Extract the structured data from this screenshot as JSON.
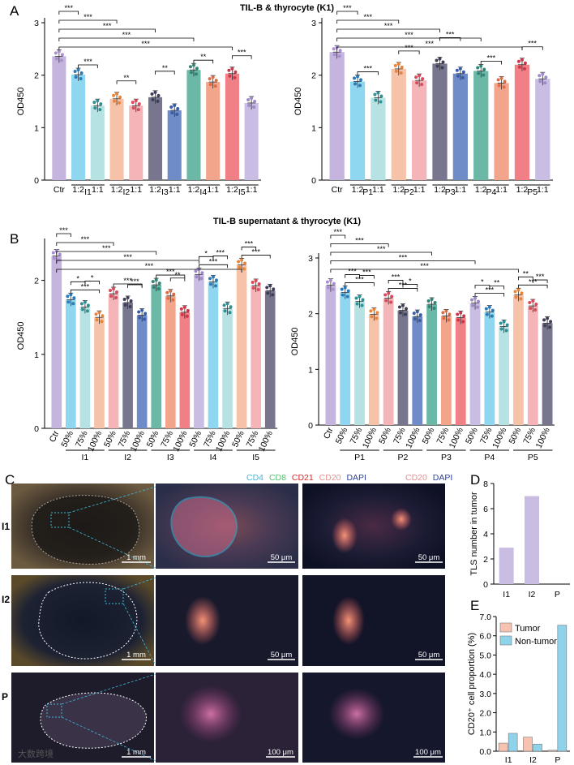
{
  "panel_labels": {
    "A": "A",
    "B": "B",
    "C": "C",
    "D": "D",
    "E": "E"
  },
  "title_A": "TIL-B & thyrocyte (K1)",
  "title_B": "TIL-B supernatant & thyrocyte (K1)",
  "ylabel_od": "OD450",
  "channels_left": [
    {
      "text": "CD4",
      "color": "#3fb8d8"
    },
    {
      "text": "CD8",
      "color": "#4dc26a"
    },
    {
      "text": "CD21",
      "color": "#d9252a"
    },
    {
      "text": "CD20",
      "color": "#e38f8f"
    },
    {
      "text": "DAPI",
      "color": "#2a3fa0"
    }
  ],
  "channels_right": [
    {
      "text": "CD20",
      "color": "#e38f8f"
    },
    {
      "text": "DAPI",
      "color": "#2a3fa0"
    }
  ],
  "micro_rows": [
    {
      "label": "I1",
      "scales": [
        "1 mm",
        "50 μm",
        "50 μm"
      ]
    },
    {
      "label": "I2",
      "scales": [
        "1 mm",
        "50 μm",
        "50 μm"
      ]
    },
    {
      "label": "P",
      "scales": [
        "1 mm",
        "100 μm",
        "100 μm"
      ]
    }
  ],
  "watermark": "大数跨境",
  "chart_data": [
    {
      "id": "A1",
      "type": "bar",
      "title": "TIL-B & thyrocyte (K1)",
      "ylabel": "OD450",
      "ylim": [
        0,
        3
      ],
      "yticks": [
        0,
        1,
        2,
        3
      ],
      "tick_labels": [
        "Ctr",
        "1:2",
        "1:1",
        "1:2",
        "1:1",
        "1:2",
        "1:1",
        "1:2",
        "1:1",
        "1:2",
        "1:1"
      ],
      "groups": [
        "I1",
        "I2",
        "I3",
        "I4",
        "I5"
      ],
      "values": [
        2.36,
        2.01,
        1.42,
        1.55,
        1.42,
        1.58,
        1.33,
        2.1,
        1.87,
        2.03,
        1.47
      ],
      "colors": [
        "#c4b4de",
        "#8fd6f0",
        "#b6e2e4",
        "#f7c3a8",
        "#f5b5b8",
        "#77768e",
        "#6f8cc9",
        "#6bb8a6",
        "#f3a58c",
        "#f07f86",
        "#c9bde3"
      ],
      "dots": [
        "#a98fd0",
        "#2c7ab8",
        "#2e8f94",
        "#e9853b",
        "#d84a5c",
        "#3f3e57",
        "#3a5ba7",
        "#2f8576",
        "#e06c42",
        "#d0354a",
        "#9d89c8"
      ],
      "sig": [
        {
          "from": 0,
          "to": 1,
          "label": "***",
          "level": 0
        },
        {
          "from": 1,
          "to": 2,
          "label": "***",
          "level": -1
        },
        {
          "from": 0,
          "to": 3,
          "label": "***",
          "level": 1
        },
        {
          "from": 3,
          "to": 4,
          "label": "**",
          "level": -2
        },
        {
          "from": 0,
          "to": 5,
          "label": "***",
          "level": 2
        },
        {
          "from": 5,
          "to": 6,
          "label": "**",
          "level": -3
        },
        {
          "from": 0,
          "to": 7,
          "label": "***",
          "level": 3
        },
        {
          "from": 7,
          "to": 8,
          "label": "**",
          "level": -4
        },
        {
          "from": 0,
          "to": 9,
          "label": "***",
          "level": 4
        },
        {
          "from": 9,
          "to": 10,
          "label": "***",
          "level": -5
        }
      ]
    },
    {
      "id": "A2",
      "type": "bar",
      "title": "",
      "ylabel": "OD450",
      "ylim": [
        0,
        3
      ],
      "yticks": [
        0,
        1,
        2,
        3
      ],
      "tick_labels": [
        "Ctr",
        "1:2",
        "1:1",
        "1:2",
        "1:1",
        "1:2",
        "1:1",
        "1:2",
        "1:1",
        "1:2",
        "1:1"
      ],
      "groups": [
        "P1",
        "P2",
        "P3",
        "P4",
        "P5"
      ],
      "values": [
        2.44,
        1.88,
        1.57,
        2.12,
        1.9,
        2.22,
        2.03,
        2.08,
        1.85,
        2.2,
        1.93
      ],
      "colors": [
        "#c4b4de",
        "#8fd6f0",
        "#b6e2e4",
        "#f7c3a8",
        "#f5b5b8",
        "#77768e",
        "#6f8cc9",
        "#6bb8a6",
        "#f3a58c",
        "#f07f86",
        "#c9bde3"
      ],
      "dots": [
        "#a98fd0",
        "#2c7ab8",
        "#2e8f94",
        "#e9853b",
        "#d84a5c",
        "#3f3e57",
        "#3a5ba7",
        "#2f8576",
        "#e06c42",
        "#d0354a",
        "#9d89c8"
      ],
      "sig": [
        {
          "from": 0,
          "to": 1,
          "label": "***",
          "level": 0
        },
        {
          "from": 1,
          "to": 2,
          "label": "***",
          "level": -1
        },
        {
          "from": 0,
          "to": 3,
          "label": "***",
          "level": 1
        },
        {
          "from": 3,
          "to": 4,
          "label": "***",
          "level": -2
        },
        {
          "from": 0,
          "to": 5,
          "label": "***",
          "level": 2
        },
        {
          "from": 5,
          "to": 6,
          "label": "***",
          "level": -3
        },
        {
          "from": 0,
          "to": 7,
          "label": "***",
          "level": 3
        },
        {
          "from": 7,
          "to": 8,
          "label": "***",
          "level": -4
        },
        {
          "from": 0,
          "to": 9,
          "label": "***",
          "level": 4
        },
        {
          "from": 9,
          "to": 10,
          "label": "***",
          "level": -5
        }
      ]
    },
    {
      "id": "B1",
      "type": "bar",
      "title": "TIL-B supernatant & thyrocyte (K1)",
      "ylabel": "OD450",
      "ylim": [
        0,
        2.5
      ],
      "yticks": [
        0,
        1,
        2
      ],
      "tick_labels": [
        "Ctr",
        "50%",
        "75%",
        "100%",
        "50%",
        "75%",
        "100%",
        "50%",
        "75%",
        "100%",
        "50%",
        "75%",
        "100%",
        "50%",
        "75%",
        "100%"
      ],
      "groups": [
        "I1",
        "I2",
        "I3",
        "I4",
        "I5"
      ],
      "values": [
        2.33,
        1.74,
        1.64,
        1.5,
        1.82,
        1.7,
        1.53,
        1.94,
        1.79,
        1.57,
        2.08,
        1.98,
        1.62,
        2.21,
        1.93,
        1.86
      ],
      "colors": [
        "#c4b4de",
        "#8fd6f0",
        "#b6e2e4",
        "#f7c3a8",
        "#f5b5b8",
        "#77768e",
        "#6f8cc9",
        "#6bb8a6",
        "#f3a58c",
        "#f07f86",
        "#c9bde3",
        "#8fd6f0",
        "#b6e2e4",
        "#f7c3a8",
        "#f5b5b8",
        "#77768e"
      ],
      "dots": [
        "#a98fd0",
        "#2c7ab8",
        "#2e8f94",
        "#e9853b",
        "#d84a5c",
        "#3f3e57",
        "#3a5ba7",
        "#2f8576",
        "#e06c42",
        "#d0354a",
        "#9d89c8",
        "#2c7ab8",
        "#2e8f94",
        "#e9853b",
        "#d84a5c",
        "#3f3e57"
      ],
      "sig": [
        {
          "from": 0,
          "to": 1,
          "label": "***",
          "level": 0
        },
        {
          "from": 0,
          "to": 4,
          "label": "***",
          "level": 1
        },
        {
          "from": 0,
          "to": 7,
          "label": "***",
          "level": 2
        },
        {
          "from": 0,
          "to": 10,
          "label": "***",
          "level": 3
        },
        {
          "from": 0,
          "to": 13,
          "label": "***",
          "level": 4
        },
        {
          "from": 1,
          "to": 3,
          "label": "***",
          "level": -1
        },
        {
          "from": 1,
          "to": 2,
          "label": "*",
          "level": -2
        },
        {
          "from": 2,
          "to": 3,
          "label": "*",
          "level": -3
        },
        {
          "from": 4,
          "to": 6,
          "label": "***",
          "level": -1
        },
        {
          "from": 5,
          "to": 6,
          "label": "***",
          "level": -2
        },
        {
          "from": 7,
          "to": 9,
          "label": "***",
          "level": -1
        },
        {
          "from": 8,
          "to": 9,
          "label": "**",
          "level": -2
        },
        {
          "from": 10,
          "to": 12,
          "label": "***",
          "level": -1
        },
        {
          "from": 10,
          "to": 11,
          "label": "*",
          "level": -2
        },
        {
          "from": 11,
          "to": 12,
          "label": "***",
          "level": -3
        },
        {
          "from": 13,
          "to": 15,
          "label": "***",
          "level": -1
        },
        {
          "from": 13,
          "to": 14,
          "label": "***",
          "level": -2
        }
      ]
    },
    {
      "id": "B2",
      "type": "bar",
      "title": "",
      "ylabel": "OD450",
      "ylim": [
        0,
        3
      ],
      "yticks": [
        0,
        1,
        2,
        3
      ],
      "tick_labels": [
        "Ctr",
        "50%",
        "75%",
        "100%",
        "50%",
        "75%",
        "100%",
        "50%",
        "75%",
        "100%",
        "50%",
        "75%",
        "100%",
        "50%",
        "75%",
        "100%"
      ],
      "groups": [
        "P1",
        "P2",
        "P3",
        "P4",
        "P5"
      ],
      "values": [
        2.51,
        2.38,
        2.22,
        1.99,
        2.28,
        2.06,
        1.95,
        2.17,
        1.96,
        1.93,
        2.19,
        2.03,
        1.77,
        2.34,
        2.14,
        1.83
      ],
      "colors": [
        "#c4b4de",
        "#8fd6f0",
        "#b6e2e4",
        "#f7c3a8",
        "#f5b5b8",
        "#77768e",
        "#6f8cc9",
        "#6bb8a6",
        "#f3a58c",
        "#f07f86",
        "#c9bde3",
        "#8fd6f0",
        "#b6e2e4",
        "#f7c3a8",
        "#f5b5b8",
        "#77768e"
      ],
      "dots": [
        "#a98fd0",
        "#2c7ab8",
        "#2e8f94",
        "#e9853b",
        "#d84a5c",
        "#3f3e57",
        "#3a5ba7",
        "#2f8576",
        "#e06c42",
        "#d0354a",
        "#9d89c8",
        "#2c7ab8",
        "#2e8f94",
        "#e9853b",
        "#d84a5c",
        "#3f3e57"
      ],
      "sig": [
        {
          "from": 0,
          "to": 1,
          "label": "***",
          "level": 0
        },
        {
          "from": 0,
          "to": 4,
          "label": "***",
          "level": 1
        },
        {
          "from": 0,
          "to": 7,
          "label": "***",
          "level": 2
        },
        {
          "from": 0,
          "to": 10,
          "label": "***",
          "level": 3
        },
        {
          "from": 0,
          "to": 13,
          "label": "***",
          "level": 4
        },
        {
          "from": 1,
          "to": 3,
          "label": "***",
          "level": -1
        },
        {
          "from": 1,
          "to": 2,
          "label": "***",
          "level": -2
        },
        {
          "from": 2,
          "to": 3,
          "label": "***",
          "level": -3
        },
        {
          "from": 4,
          "to": 6,
          "label": "***",
          "level": -1
        },
        {
          "from": 4,
          "to": 5,
          "label": "***",
          "level": -2
        },
        {
          "from": 5,
          "to": 6,
          "label": "*",
          "level": -3
        },
        {
          "from": 10,
          "to": 12,
          "label": "***",
          "level": -1
        },
        {
          "from": 10,
          "to": 11,
          "label": "*",
          "level": -2
        },
        {
          "from": 11,
          "to": 12,
          "label": "**",
          "level": -3
        },
        {
          "from": 13,
          "to": 15,
          "label": "***",
          "level": -1
        },
        {
          "from": 13,
          "to": 14,
          "label": "**",
          "level": -2
        },
        {
          "from": 14,
          "to": 15,
          "label": "***",
          "level": -3
        }
      ]
    },
    {
      "id": "D",
      "type": "bar",
      "title": "",
      "ylabel": "TLS number in tumor",
      "ylim": [
        0,
        8
      ],
      "yticks": [
        0,
        2,
        4,
        6,
        8
      ],
      "categories": [
        "I1",
        "I2",
        "P"
      ],
      "values": [
        2.9,
        7.0,
        0
      ],
      "colors": [
        "#c9bde3",
        "#c9bde3",
        "#c9bde3"
      ]
    },
    {
      "id": "E",
      "type": "bar",
      "title": "",
      "ylabel": "CD20⁺ cell proportion (%)",
      "ylim": [
        0,
        7
      ],
      "yticks": [
        0.0,
        1.0,
        2.0,
        3.0,
        4.0,
        5.0,
        6.0,
        7.0
      ],
      "categories": [
        "I1",
        "I2",
        "P"
      ],
      "series": [
        {
          "name": "Tumor",
          "color": "#f7c3b0",
          "values": [
            0.42,
            0.73,
            0.05
          ]
        },
        {
          "name": "Non-tumor",
          "color": "#8fd3ea",
          "values": [
            0.93,
            0.37,
            6.55
          ]
        }
      ],
      "legend": "top-left"
    }
  ]
}
